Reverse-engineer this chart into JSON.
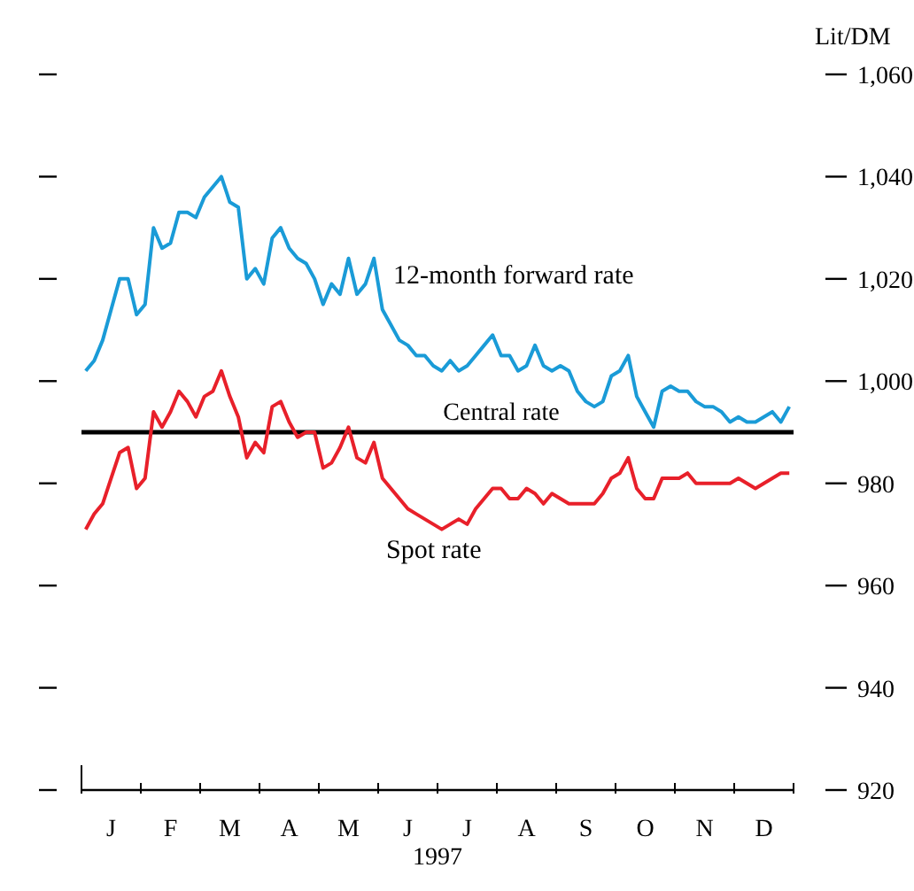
{
  "chart_data": {
    "type": "line",
    "ylabel": "Lit/DM",
    "xlabel": "1997",
    "categories": [
      null,
      null,
      null,
      "J",
      null,
      null,
      null,
      null,
      null,
      null,
      "F",
      null,
      null,
      null,
      null,
      null,
      null,
      "M",
      null,
      null,
      null,
      null,
      null,
      null,
      "A",
      null,
      null,
      null,
      null,
      null,
      null,
      "M",
      null,
      null,
      null,
      null,
      null,
      null,
      "J",
      null,
      null,
      null,
      null,
      null,
      null,
      "J",
      null,
      null,
      null,
      null,
      null,
      null,
      "A",
      null,
      null,
      null,
      null,
      null,
      null,
      "S",
      null,
      null,
      null,
      null,
      null,
      null,
      "O",
      null,
      null,
      null,
      null,
      null,
      null,
      "N",
      null,
      null,
      null,
      null,
      null,
      null,
      "D",
      null,
      null,
      null
    ],
    "ylim": [
      920,
      1060
    ],
    "yticks": [
      920,
      940,
      960,
      980,
      {
        "value": 1000,
        "label": "1,000"
      },
      {
        "value": 1020,
        "label": "1,020"
      },
      {
        "value": 1040,
        "label": "1,040"
      },
      {
        "value": 1060,
        "label": "1,060"
      }
    ],
    "marker": "none",
    "line_style": "solid",
    "ref_lines": [
      {
        "axis": "y",
        "value": 990,
        "label": "Central rate",
        "color": "#000000"
      }
    ],
    "series": [
      {
        "name": "12-month forward rate",
        "color": "#1a9bd7",
        "values": [
          1002,
          1004,
          1008,
          1014,
          1020,
          1020,
          1013,
          1015,
          1030,
          1026,
          1027,
          1033,
          1033,
          1032,
          1036,
          1038,
          1040,
          1035,
          1034,
          1020,
          1022,
          1019,
          1028,
          1030,
          1026,
          1024,
          1023,
          1020,
          1015,
          1019,
          1017,
          1024,
          1017,
          1019,
          1024,
          1014,
          1011,
          1008,
          1007,
          1005,
          1005,
          1003,
          1002,
          1004,
          1002,
          1003,
          1005,
          1007,
          1009,
          1005,
          1005,
          1002,
          1003,
          1007,
          1003,
          1002,
          1003,
          1002,
          998,
          996,
          995,
          996,
          1001,
          1002,
          1005,
          997,
          994,
          991,
          998,
          999,
          998,
          998,
          996,
          995,
          995,
          994,
          992,
          993,
          992,
          992,
          993,
          994,
          992,
          995
        ]
      },
      {
        "name": "Spot rate",
        "color": "#e8202a",
        "values": [
          971,
          974,
          976,
          981,
          986,
          987,
          979,
          981,
          994,
          991,
          994,
          998,
          996,
          993,
          997,
          998,
          1002,
          997,
          993,
          985,
          988,
          986,
          995,
          996,
          992,
          989,
          990,
          990,
          983,
          984,
          987,
          991,
          985,
          984,
          988,
          981,
          979,
          977,
          975,
          974,
          973,
          972,
          971,
          972,
          973,
          972,
          975,
          977,
          979,
          979,
          977,
          977,
          979,
          978,
          976,
          978,
          977,
          976,
          976,
          976,
          976,
          978,
          981,
          982,
          985,
          979,
          977,
          977,
          981,
          981,
          981,
          982,
          980,
          980,
          980,
          980,
          980,
          981,
          980,
          979,
          980,
          981,
          982,
          982
        ]
      }
    ]
  }
}
